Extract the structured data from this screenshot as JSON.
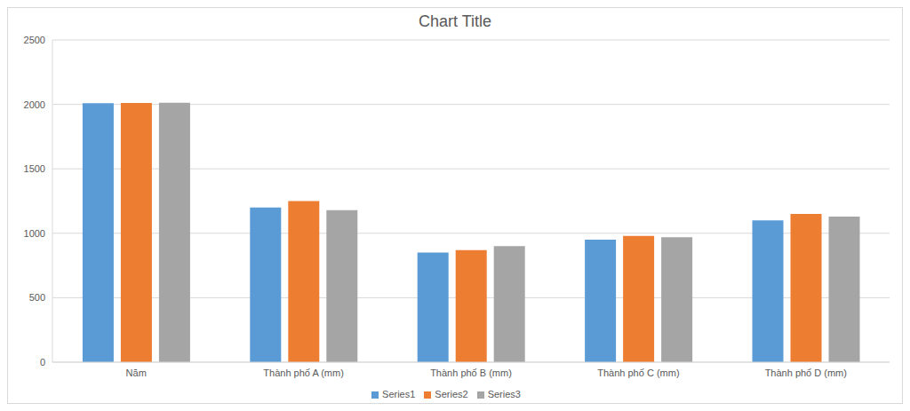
{
  "chart_data": {
    "type": "bar",
    "title": "Chart Title",
    "categories": [
      "Năm",
      "Thành phố A (mm)",
      "Thành phố B (mm)",
      "Thành phố C (mm)",
      "Thành phố D (mm)"
    ],
    "series": [
      {
        "name": "Series1",
        "color": "#5b9bd5",
        "values": [
          2010,
          1200,
          850,
          950,
          1100
        ]
      },
      {
        "name": "Series2",
        "color": "#ed7d31",
        "values": [
          2011,
          1250,
          870,
          980,
          1150
        ]
      },
      {
        "name": "Series3",
        "color": "#a5a5a5",
        "values": [
          2012,
          1180,
          900,
          970,
          1130
        ]
      }
    ],
    "ylim": [
      0,
      2500
    ],
    "yticks": [
      0,
      500,
      1000,
      1500,
      2000,
      2500
    ],
    "grid": true,
    "legend": "bottom"
  }
}
